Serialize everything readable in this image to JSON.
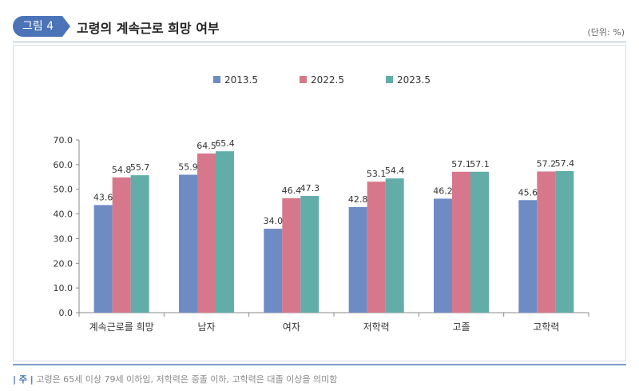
{
  "header": {
    "badge": "그림 4",
    "title": "고령의 계속근로 희망 여부",
    "unit": "(단위: %)"
  },
  "footnote": {
    "mark": "| 주 |",
    "text": "고령은 65세 이상 79세 이하임, 저학력은 중졸 이하, 고학력은 대졸 이상을 의미함"
  },
  "colors": {
    "s2013": "#6e8bc4",
    "s2022": "#d7778c",
    "s2023": "#62ada7"
  },
  "chart_data": {
    "type": "bar",
    "categories": [
      "계속근로를 희망",
      "남자",
      "여자",
      "저학력",
      "고졸",
      "고학력"
    ],
    "series": [
      {
        "name": "2013.5",
        "values": [
          43.6,
          55.9,
          34.0,
          42.8,
          46.2,
          45.6
        ]
      },
      {
        "name": "2022.5",
        "values": [
          54.8,
          64.5,
          46.4,
          53.1,
          57.1,
          57.2
        ]
      },
      {
        "name": "2023.5",
        "values": [
          55.7,
          65.4,
          47.3,
          54.4,
          57.1,
          57.4
        ]
      }
    ],
    "ylim": [
      0,
      70
    ],
    "yticks": [
      "0.0",
      "10.0",
      "20.0",
      "30.0",
      "40.0",
      "50.0",
      "60.0",
      "70.0"
    ],
    "legend": "top-center",
    "grid": false
  }
}
